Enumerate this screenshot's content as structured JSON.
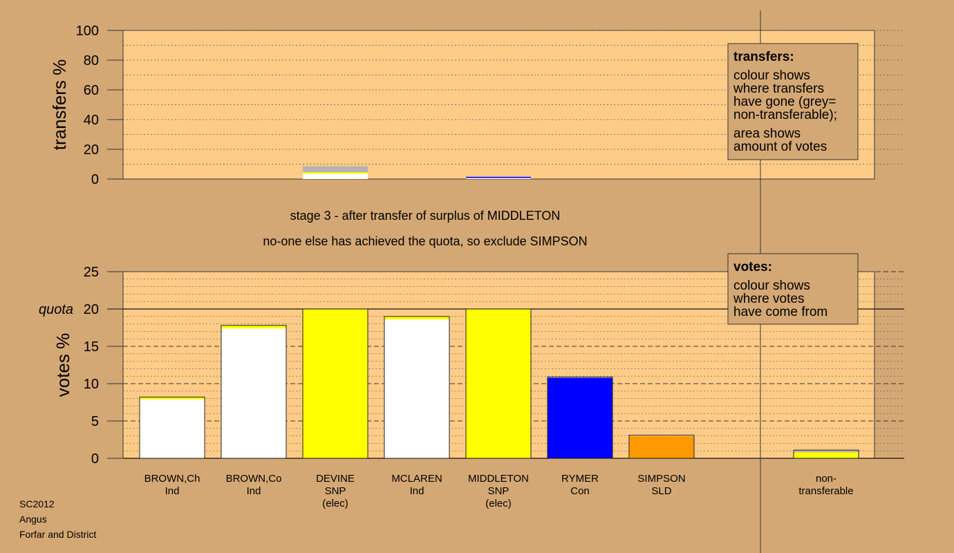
{
  "chart_data": [
    {
      "type": "bar",
      "panel": "transfers",
      "ylabel": "transfers %",
      "ylim": [
        0,
        100
      ],
      "yticks": [
        0,
        20,
        40,
        60,
        80,
        100
      ],
      "minor_step": 10,
      "candidates": [
        "BROWN,Ch",
        "BROWN,Co",
        "DEVINE",
        "MCLAREN",
        "MIDDLETON",
        "RYMER",
        "SIMPSON"
      ],
      "transfers": [
        {
          "candidate": "DEVINE",
          "segments": [
            {
              "value": 3.6,
              "color": "#ffffff"
            },
            {
              "value": 1.0,
              "color": "#ffff00"
            },
            {
              "value": 4.0,
              "color": "#b3b3b3"
            }
          ]
        },
        {
          "candidate": "MIDDLETON",
          "segments": [
            {
              "value": 0.7,
              "color": "#ffffff"
            },
            {
              "value": 0.8,
              "color": "#0000ff"
            }
          ]
        }
      ],
      "legend": {
        "title": "transfers:",
        "lines": [
          "colour shows",
          "where transfers",
          "have gone (grey=",
          "non-transferable);",
          "area shows",
          "amount of votes"
        ]
      }
    },
    {
      "type": "bar",
      "panel": "votes",
      "ylabel": "votes %",
      "ylim": [
        0,
        25
      ],
      "yticks": [
        0,
        5,
        10,
        15,
        20,
        25
      ],
      "minor_step": 1,
      "quota": 20,
      "quota_label": "quota",
      "bars": [
        {
          "name": "BROWN,Ch",
          "party": "Ind",
          "elected": "",
          "segments": [
            {
              "value": 7.9,
              "color": "#ffffff"
            },
            {
              "value": 0.3,
              "color": "#ffff00"
            }
          ]
        },
        {
          "name": "BROWN,Co",
          "party": "Ind",
          "elected": "",
          "segments": [
            {
              "value": 17.4,
              "color": "#ffffff"
            },
            {
              "value": 0.4,
              "color": "#ffff00"
            }
          ]
        },
        {
          "name": "DEVINE",
          "party": "SNP",
          "elected": "(elec)",
          "segments": [
            {
              "value": 20.0,
              "color": "#ffff00"
            }
          ]
        },
        {
          "name": "MCLAREN",
          "party": "Ind",
          "elected": "",
          "segments": [
            {
              "value": 18.6,
              "color": "#ffffff"
            },
            {
              "value": 0.4,
              "color": "#ffff00"
            }
          ]
        },
        {
          "name": "MIDDLETON",
          "party": "SNP",
          "elected": "(elec)",
          "segments": [
            {
              "value": 20.0,
              "color": "#ffff00"
            }
          ]
        },
        {
          "name": "RYMER",
          "party": "Con",
          "elected": "",
          "segments": [
            {
              "value": 10.8,
              "color": "#0000ff"
            },
            {
              "value": 0.1,
              "color": "#ffffff"
            }
          ]
        },
        {
          "name": "SIMPSON",
          "party": "SLD",
          "elected": "",
          "segments": [
            {
              "value": 3.0,
              "color": "#ff9900"
            },
            {
              "value": 0.1,
              "color": "#ffffff"
            }
          ]
        }
      ],
      "nontransferable": {
        "label_lines": [
          "non-",
          "transferable"
        ],
        "segments": [
          {
            "value": 0.8,
            "color": "#ffff00"
          },
          {
            "value": 0.3,
            "color": "#b3b3b3"
          }
        ]
      },
      "legend": {
        "title": "votes:",
        "lines": [
          "colour shows",
          "where votes",
          "have come from"
        ]
      }
    }
  ],
  "stage_text": {
    "line1": "stage 3 - after transfer of surplus of MIDDLETON",
    "line2": "no-one else has achieved the quota, so exclude SIMPSON"
  },
  "footer": [
    "SC2012",
    "Angus",
    "Forfar and District"
  ],
  "colors": {
    "background": "#d4a874",
    "plot_bg": "#ffcc88"
  }
}
